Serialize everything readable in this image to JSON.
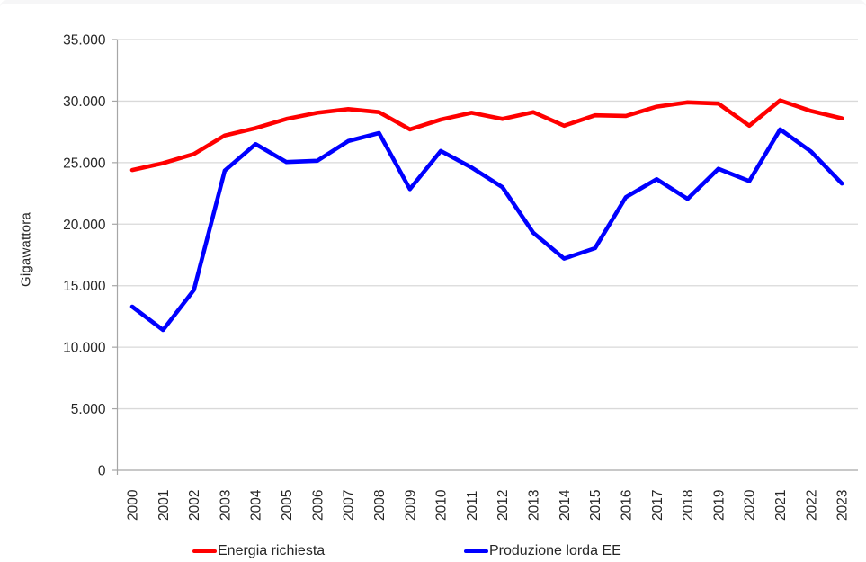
{
  "chart_data": {
    "type": "line",
    "title": "",
    "xlabel": "",
    "ylabel": "Gigawattora",
    "ylim": [
      0,
      35000
    ],
    "ytick_step": 5000,
    "ytick_labels": [
      "0",
      "5.000",
      "10.000",
      "15.000",
      "20.000",
      "25.000",
      "30.000",
      "35.000"
    ],
    "grid": "horizontal",
    "legend_position": "bottom",
    "categories": [
      "2000",
      "2001",
      "2002",
      "2003",
      "2004",
      "2005",
      "2006",
      "2007",
      "2008",
      "2009",
      "2010",
      "2011",
      "2012",
      "2013",
      "2014",
      "2015",
      "2016",
      "2017",
      "2018",
      "2019",
      "2020",
      "2021",
      "2022",
      "2023"
    ],
    "series": [
      {
        "name": "Energia richiesta",
        "color": "#ff0000",
        "values": [
          24400,
          24950,
          25700,
          27200,
          27800,
          28550,
          29050,
          29350,
          29100,
          27700,
          28500,
          29050,
          28550,
          29100,
          28000,
          28850,
          28800,
          29550,
          29900,
          29800,
          28000,
          30050,
          29200,
          28600
        ]
      },
      {
        "name": "Produzione lorda EE",
        "color": "#0000ff",
        "values": [
          13300,
          11400,
          14650,
          24350,
          26500,
          25050,
          25150,
          26750,
          27400,
          22850,
          25950,
          24600,
          23000,
          19300,
          17200,
          18050,
          22200,
          23650,
          22050,
          24500,
          23500,
          27700,
          25900,
          23300
        ]
      }
    ],
    "colors": {
      "gridline": "#d9d9d9",
      "axis": "#a6a6a6",
      "tick_text": "#262626"
    }
  }
}
